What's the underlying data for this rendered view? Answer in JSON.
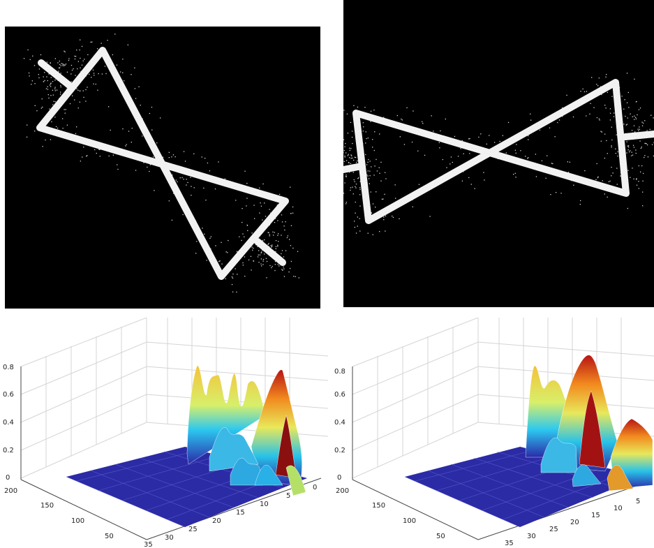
{
  "images": [
    {
      "name": "shape-image-rotated",
      "content": "white bowtie/hourglass outline (two triangles meeting at a point) with two line stubs, on black background, rotated diagonally"
    },
    {
      "name": "shape-image-horizontal",
      "content": "white bowtie outline (two triangles meeting at a point) with two horizontal line stubs, on black background"
    }
  ],
  "surface_plots": [
    {
      "z_ticks": [
        "0",
        "0.2",
        "0.4",
        "0.6",
        "0.8"
      ],
      "left_axis_ticks": [
        "200",
        "150",
        "100",
        "50"
      ],
      "right_axis_ticks": [
        "35",
        "30",
        "25",
        "20",
        "15",
        "10",
        "5",
        "0"
      ],
      "colormap": "jet",
      "mesh_color": "#2a2aa8"
    },
    {
      "z_ticks": [
        "0",
        "0.2",
        "0.4",
        "0.6",
        "0.8"
      ],
      "left_axis_ticks": [
        "200",
        "150",
        "100",
        "50"
      ],
      "right_axis_ticks": [
        "35",
        "30",
        "25",
        "20",
        "15",
        "10",
        "5"
      ],
      "colormap": "jet",
      "mesh_color": "#2a2aa8"
    }
  ]
}
